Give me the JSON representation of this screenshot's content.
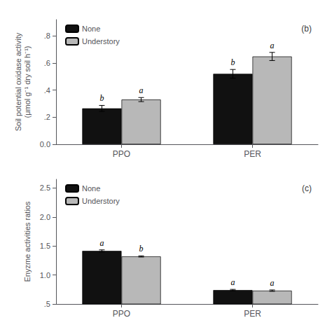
{
  "chart_data": [
    {
      "type": "bar",
      "title": "(b)",
      "ylabel": "Soil potential oxidase activity\n(μmol g⁻¹ dry soil h⁻¹)",
      "categories": [
        "PPO",
        "PER"
      ],
      "series": [
        {
          "name": "None",
          "color": "#111111",
          "values": [
            0.265,
            0.52
          ],
          "errors": [
            0.022,
            0.032
          ],
          "annotations": [
            "b",
            "b"
          ]
        },
        {
          "name": "Understory",
          "color": "#b8b8b8",
          "values": [
            0.33,
            0.648
          ],
          "errors": [
            0.015,
            0.03
          ],
          "annotations": [
            "a",
            "a"
          ]
        }
      ],
      "ylim": [
        0.0,
        0.92
      ],
      "yticks": [
        {
          "value": 0.0,
          "label": "0.0"
        },
        {
          "value": 0.2,
          "label": ".2"
        },
        {
          "value": 0.4,
          "label": ".4"
        },
        {
          "value": 0.6,
          "label": ".6"
        },
        {
          "value": 0.8,
          "label": ".8"
        }
      ],
      "grid": false,
      "legend": "upper left"
    },
    {
      "type": "bar",
      "title": "(c)",
      "ylabel": "Enyzme activities ratios",
      "categories": [
        "PPO",
        "PER"
      ],
      "series": [
        {
          "name": "None",
          "color": "#111111",
          "values": [
            1.415,
            0.74
          ],
          "errors": [
            0.018,
            0.012
          ],
          "annotations": [
            "a",
            "a"
          ]
        },
        {
          "name": "Understory",
          "color": "#b8b8b8",
          "values": [
            1.32,
            0.73
          ],
          "errors": [
            0.01,
            0.012
          ],
          "annotations": [
            "b",
            "a"
          ]
        }
      ],
      "ylim": [
        0.5,
        2.65
      ],
      "yticks": [
        {
          "value": 0.5,
          "label": ".5"
        },
        {
          "value": 1.0,
          "label": "1.0"
        },
        {
          "value": 1.5,
          "label": "1.5"
        },
        {
          "value": 2.0,
          "label": "2.0"
        },
        {
          "value": 2.5,
          "label": "2.5"
        }
      ],
      "grid": false,
      "legend": "upper left"
    }
  ]
}
